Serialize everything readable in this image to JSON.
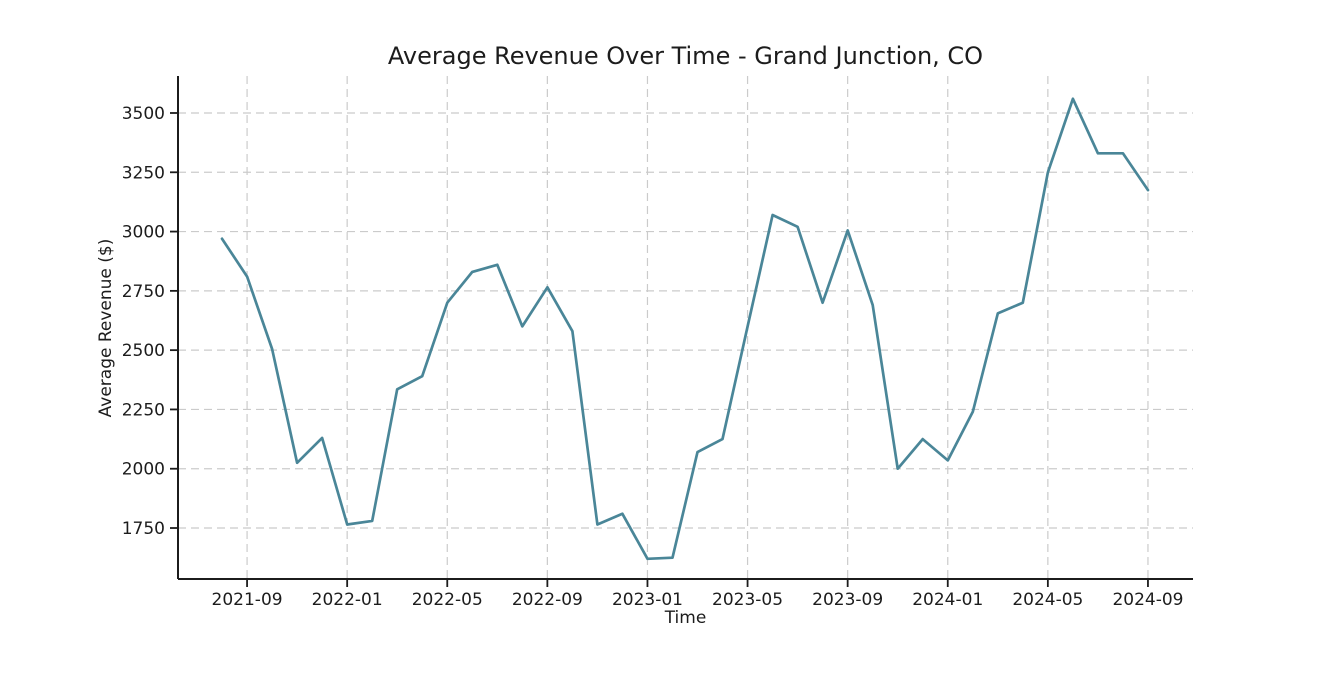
{
  "figure": {
    "background": "#ffffff"
  },
  "chart_data": {
    "type": "line",
    "title": "Average Revenue Over Time - Grand Junction, CO",
    "xlabel": "Time",
    "ylabel": "Average Revenue ($)",
    "x": [
      "2021-08",
      "2021-09",
      "2021-10",
      "2021-11",
      "2021-12",
      "2022-01",
      "2022-02",
      "2022-03",
      "2022-04",
      "2022-05",
      "2022-06",
      "2022-07",
      "2022-08",
      "2022-09",
      "2022-10",
      "2022-11",
      "2022-12",
      "2023-01",
      "2023-02",
      "2023-03",
      "2023-04",
      "2023-05",
      "2023-06",
      "2023-07",
      "2023-08",
      "2023-09",
      "2023-10",
      "2023-11",
      "2023-12",
      "2024-01",
      "2024-02",
      "2024-03",
      "2024-04",
      "2024-05",
      "2024-06",
      "2024-07",
      "2024-08",
      "2024-09"
    ],
    "values": [
      2970,
      2810,
      2505,
      2025,
      2130,
      1765,
      1780,
      2335,
      2390,
      2700,
      2830,
      2860,
      2600,
      2765,
      2580,
      1765,
      1810,
      1620,
      1625,
      2070,
      2125,
      2600,
      3070,
      3020,
      2700,
      3005,
      2690,
      2000,
      2125,
      2035,
      2240,
      2655,
      2700,
      3250,
      3560,
      3330,
      3330,
      3175
    ],
    "x_tick_labels": [
      "2021-09",
      "2022-01",
      "2022-05",
      "2022-09",
      "2023-01",
      "2023-05",
      "2023-09",
      "2024-01",
      "2024-05",
      "2024-09"
    ],
    "y_ticks": [
      1750,
      2000,
      2250,
      2500,
      2750,
      3000,
      3250,
      3500
    ],
    "ylim": [
      1535,
      3656
    ],
    "grid": true,
    "grid_style": "dashed",
    "legend_position": "none",
    "line_color": "#4a8698",
    "grid_color": "#cbcbcb",
    "axis_color": "#1c1c1c"
  }
}
